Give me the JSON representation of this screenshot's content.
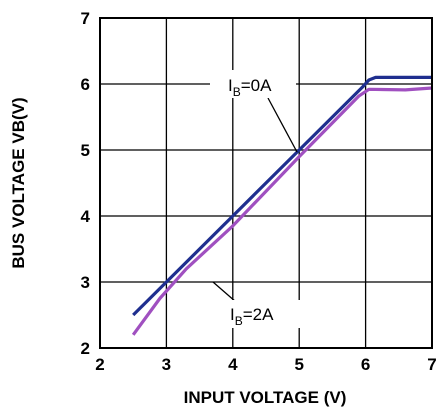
{
  "chart_data": {
    "type": "line",
    "title": "",
    "xlabel": "INPUT VOLTAGE (V)",
    "ylabel": "BUS VOLTAGE VB(V)",
    "xlim": [
      2,
      7
    ],
    "ylim": [
      2,
      7
    ],
    "x_ticks": [
      "2",
      "3",
      "4",
      "5",
      "6",
      "7"
    ],
    "y_ticks": [
      "2",
      "3",
      "4",
      "5",
      "6",
      "7"
    ],
    "grid": true,
    "series": [
      {
        "color": "#1f2f8f",
        "points": [
          [
            2.5,
            2.5
          ],
          [
            3.0,
            3.0
          ],
          [
            4.0,
            4.0
          ],
          [
            5.0,
            5.0
          ],
          [
            5.95,
            5.95
          ],
          [
            6.05,
            6.06
          ],
          [
            6.15,
            6.1
          ],
          [
            7.0,
            6.1
          ]
        ]
      },
      {
        "color": "#a050c0",
        "points": [
          [
            2.5,
            2.2
          ],
          [
            2.9,
            2.75
          ],
          [
            3.3,
            3.2
          ],
          [
            4.0,
            3.85
          ],
          [
            5.0,
            4.9
          ],
          [
            5.9,
            5.82
          ],
          [
            6.05,
            5.92
          ],
          [
            6.6,
            5.91
          ],
          [
            7.0,
            5.94
          ]
        ]
      }
    ],
    "annotations": [
      {
        "main": "I",
        "sub": "B",
        "rest": "=0A"
      },
      {
        "main": "I",
        "sub": "B",
        "rest": "=2A"
      }
    ]
  }
}
